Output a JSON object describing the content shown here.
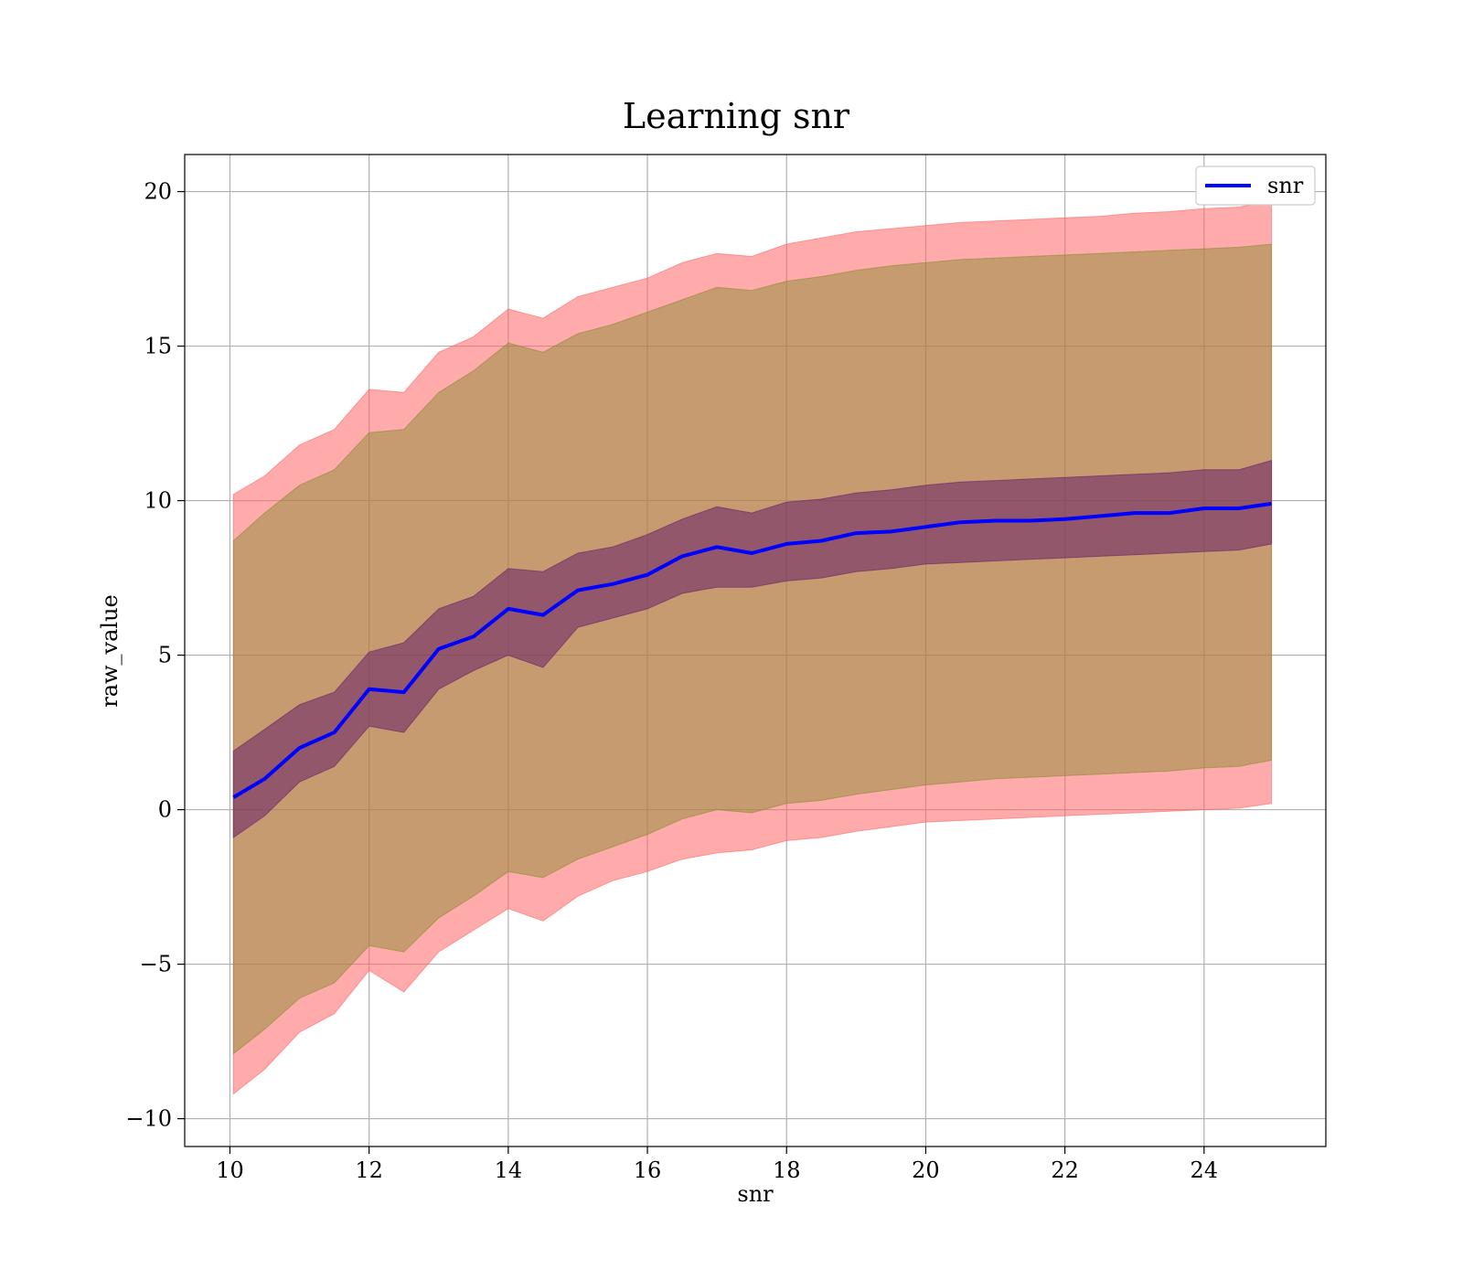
{
  "chart_data": {
    "type": "line",
    "title": "Learning snr",
    "xlabel": "snr",
    "ylabel": "raw_value",
    "xlim": [
      9.35,
      25.75
    ],
    "ylim": [
      -10.9,
      21.2
    ],
    "xticks": [
      10,
      12,
      14,
      16,
      18,
      20,
      22,
      24
    ],
    "yticks": [
      -10,
      -5,
      0,
      5,
      10,
      15,
      20
    ],
    "xtick_labels": [
      "10",
      "12",
      "14",
      "16",
      "18",
      "20",
      "22",
      "24"
    ],
    "ytick_labels": [
      "−10",
      "−5",
      "0",
      "5",
      "10",
      "15",
      "20"
    ],
    "grid": true,
    "legend_position": "top-right",
    "legend": [
      "snr"
    ],
    "colors": {
      "line": "#0000ff",
      "outer_band": "#ff6666",
      "middle_band": "#8c8c33",
      "inner_band": "#6a1f6a"
    },
    "x": [
      10.05,
      10.5,
      11.0,
      11.5,
      12.0,
      12.5,
      13.0,
      13.5,
      14.0,
      14.5,
      15.0,
      15.5,
      16.0,
      16.5,
      17.0,
      17.5,
      18.0,
      18.5,
      19.0,
      19.5,
      20.0,
      20.5,
      21.0,
      21.5,
      22.0,
      22.5,
      23.0,
      23.5,
      24.0,
      24.5,
      24.97
    ],
    "series": [
      {
        "name": "snr",
        "values": [
          0.4,
          1.0,
          2.0,
          2.5,
          3.9,
          3.8,
          5.2,
          5.6,
          6.5,
          6.3,
          7.1,
          7.3,
          7.6,
          8.2,
          8.5,
          8.3,
          8.6,
          8.7,
          8.95,
          9.0,
          9.15,
          9.3,
          9.35,
          9.35,
          9.4,
          9.5,
          9.6,
          9.6,
          9.75,
          9.75,
          9.9
        ]
      }
    ],
    "bands": [
      {
        "level": "outer",
        "lower": [
          -9.2,
          -8.4,
          -7.2,
          -6.6,
          -5.2,
          -5.9,
          -4.6,
          -3.9,
          -3.2,
          -3.6,
          -2.8,
          -2.3,
          -2.0,
          -1.6,
          -1.4,
          -1.3,
          -1.0,
          -0.9,
          -0.7,
          -0.55,
          -0.4,
          -0.35,
          -0.3,
          -0.25,
          -0.2,
          -0.15,
          -0.1,
          -0.05,
          0.0,
          0.05,
          0.2
        ],
        "upper": [
          10.2,
          10.8,
          11.8,
          12.3,
          13.6,
          13.5,
          14.8,
          15.3,
          16.2,
          15.9,
          16.6,
          16.9,
          17.2,
          17.7,
          18.0,
          17.9,
          18.3,
          18.5,
          18.7,
          18.8,
          18.9,
          19.0,
          19.05,
          19.1,
          19.15,
          19.2,
          19.3,
          19.35,
          19.45,
          19.5,
          19.7
        ]
      },
      {
        "level": "middle",
        "lower": [
          -7.9,
          -7.1,
          -6.1,
          -5.6,
          -4.4,
          -4.6,
          -3.5,
          -2.8,
          -2.0,
          -2.2,
          -1.6,
          -1.2,
          -0.8,
          -0.3,
          0.0,
          -0.1,
          0.2,
          0.3,
          0.5,
          0.65,
          0.8,
          0.9,
          1.0,
          1.05,
          1.1,
          1.15,
          1.2,
          1.25,
          1.35,
          1.4,
          1.6
        ],
        "upper": [
          8.7,
          9.6,
          10.5,
          11.0,
          12.2,
          12.3,
          13.5,
          14.2,
          15.1,
          14.8,
          15.4,
          15.7,
          16.1,
          16.5,
          16.9,
          16.8,
          17.1,
          17.25,
          17.45,
          17.6,
          17.7,
          17.8,
          17.85,
          17.9,
          17.95,
          18.0,
          18.05,
          18.1,
          18.15,
          18.2,
          18.3
        ]
      },
      {
        "level": "inner",
        "lower": [
          -0.9,
          -0.2,
          0.9,
          1.4,
          2.7,
          2.5,
          3.9,
          4.5,
          5.0,
          4.6,
          5.9,
          6.2,
          6.5,
          7.0,
          7.2,
          7.2,
          7.4,
          7.5,
          7.7,
          7.8,
          7.95,
          8.0,
          8.05,
          8.1,
          8.15,
          8.2,
          8.25,
          8.3,
          8.35,
          8.4,
          8.6
        ],
        "upper": [
          1.9,
          2.6,
          3.4,
          3.8,
          5.1,
          5.4,
          6.5,
          6.9,
          7.8,
          7.7,
          8.3,
          8.5,
          8.9,
          9.4,
          9.8,
          9.6,
          9.95,
          10.05,
          10.25,
          10.35,
          10.5,
          10.6,
          10.65,
          10.7,
          10.75,
          10.8,
          10.85,
          10.9,
          11.0,
          11.0,
          11.3
        ]
      }
    ]
  }
}
